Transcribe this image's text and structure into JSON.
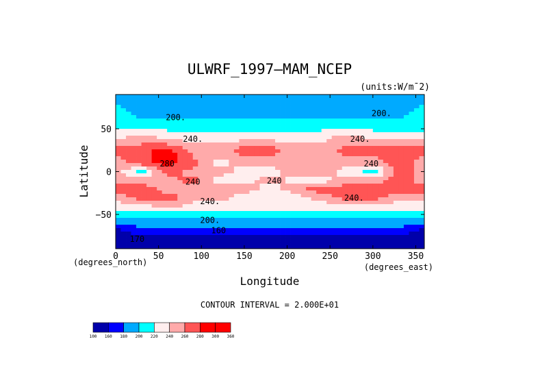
{
  "chart_data": {
    "type": "heatmap",
    "title": "ULWRF_1997—MAM_NCEP",
    "units_label": "(units:W/m¯2)",
    "xlabel": "Longitude",
    "ylabel": "Latitude",
    "x_unit_label": "(degrees_east)",
    "y_unit_label": "(degrees_north)",
    "xlim": [
      0,
      360
    ],
    "ylim": [
      -90,
      90
    ],
    "x_ticks": [
      0,
      50,
      100,
      150,
      200,
      250,
      300,
      350
    ],
    "y_ticks": [
      50,
      0,
      -50
    ],
    "x_tick_labels": [
      "0",
      "50",
      "100",
      "150",
      "200",
      "250",
      "300",
      "350"
    ],
    "y_tick_labels": [
      "50",
      "0",
      "−50"
    ],
    "contour_interval_label": "CONTOUR INTERVAL = 2.000E+01",
    "contour_labels": [
      {
        "text": "200.",
        "lon": 70,
        "lat": 60
      },
      {
        "text": "200.",
        "lon": 310,
        "lat": 65
      },
      {
        "text": "240.",
        "lon": 90,
        "lat": 35
      },
      {
        "text": "240.",
        "lon": 285,
        "lat": 35
      },
      {
        "text": "280",
        "lon": 60,
        "lat": 6
      },
      {
        "text": "240",
        "lon": 298,
        "lat": 6
      },
      {
        "text": "240",
        "lon": 90,
        "lat": -15
      },
      {
        "text": "240",
        "lon": 185,
        "lat": -14
      },
      {
        "text": "240.",
        "lon": 110,
        "lat": -38
      },
      {
        "text": "240.",
        "lon": 278,
        "lat": -34
      },
      {
        "text": "200.",
        "lon": 110,
        "lat": -60
      },
      {
        "text": "160",
        "lon": 120,
        "lat": -72
      },
      {
        "text": "170",
        "lon": 25,
        "lat": -82
      }
    ],
    "colorbar": {
      "levels": [
        "100",
        "160",
        "180",
        "200",
        "220",
        "240",
        "260",
        "280",
        "300",
        "360"
      ],
      "colors": [
        "#0000aa",
        "#0000ff",
        "#00aaff",
        "#00ffff",
        "#ffeeee",
        "#ffaaaa",
        "#ff5555",
        "#ff0000",
        "#ff0000"
      ]
    },
    "level_colors": [
      "#0000aa",
      "#0000ff",
      "#00aaff",
      "#00ffff",
      "#ffeeee",
      "#ffaaaa",
      "#ff5555",
      "#ff0000"
    ],
    "field_lat": [
      90,
      70,
      55,
      40,
      25,
      10,
      0,
      -10,
      -20,
      -30,
      -40,
      -50,
      -60,
      -70,
      -80,
      -90
    ],
    "field_lon": [
      0,
      30,
      60,
      90,
      120,
      150,
      180,
      210,
      240,
      270,
      300,
      330,
      360
    ],
    "field": [
      [
        2,
        2,
        2,
        2,
        2,
        2,
        2,
        2,
        2,
        2,
        2,
        2,
        2
      ],
      [
        3,
        2,
        2,
        2,
        2,
        2,
        2,
        2,
        2,
        2,
        2,
        2,
        3
      ],
      [
        3,
        3,
        3,
        3,
        3,
        3,
        3,
        3,
        3,
        3,
        3,
        3,
        3
      ],
      [
        4,
        5,
        4,
        4,
        4,
        4,
        4,
        4,
        4,
        5,
        4,
        4,
        4
      ],
      [
        6,
        6,
        7,
        5,
        5,
        6,
        6,
        5,
        5,
        6,
        6,
        6,
        6
      ],
      [
        5,
        6,
        7,
        6,
        4,
        5,
        5,
        5,
        5,
        5,
        5,
        6,
        5
      ],
      [
        5,
        3,
        6,
        5,
        5,
        4,
        4,
        5,
        5,
        4,
        3,
        6,
        5
      ],
      [
        5,
        5,
        5,
        6,
        4,
        4,
        5,
        4,
        4,
        5,
        5,
        6,
        5
      ],
      [
        6,
        6,
        5,
        5,
        5,
        5,
        4,
        5,
        6,
        6,
        6,
        6,
        6
      ],
      [
        5,
        6,
        6,
        5,
        5,
        4,
        4,
        4,
        5,
        6,
        6,
        5,
        5
      ],
      [
        4,
        4,
        5,
        4,
        4,
        4,
        4,
        4,
        4,
        4,
        4,
        4,
        4
      ],
      [
        3,
        3,
        3,
        3,
        3,
        3,
        3,
        3,
        3,
        3,
        3,
        3,
        3
      ],
      [
        2,
        2,
        2,
        2,
        2,
        2,
        2,
        2,
        2,
        2,
        2,
        2,
        2
      ],
      [
        0,
        1,
        1,
        1,
        1,
        1,
        1,
        1,
        1,
        1,
        1,
        1,
        0
      ],
      [
        0,
        0,
        0,
        0,
        0,
        0,
        0,
        0,
        0,
        0,
        0,
        0,
        0
      ],
      [
        0,
        0,
        0,
        0,
        0,
        0,
        0,
        0,
        0,
        0,
        0,
        0,
        0
      ]
    ]
  }
}
